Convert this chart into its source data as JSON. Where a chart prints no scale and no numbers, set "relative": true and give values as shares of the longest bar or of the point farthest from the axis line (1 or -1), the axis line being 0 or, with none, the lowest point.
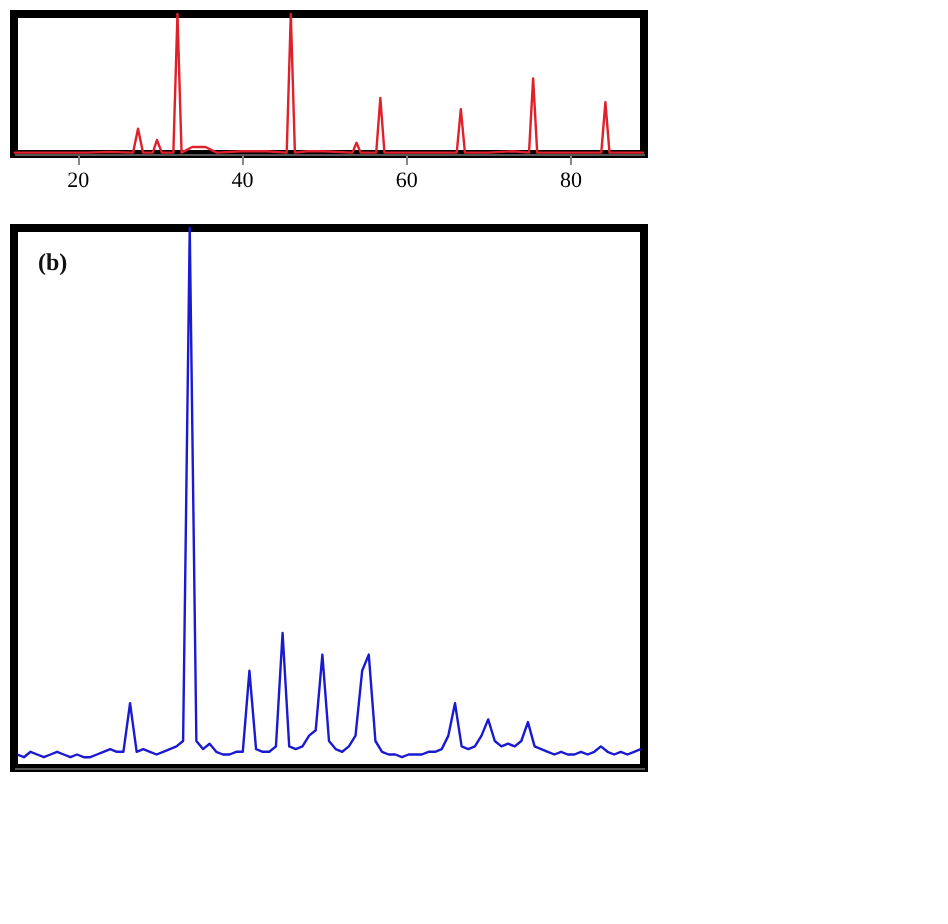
{
  "chart_data": [
    {
      "type": "line",
      "relative": true,
      "xlim": [
        12.3,
        89
      ],
      "xticks": [
        20,
        40,
        60,
        80
      ],
      "series": [
        {
          "color": "#e0202a",
          "x": [
            12.3,
            15,
            18,
            21,
            24,
            26.8,
            27.4,
            28,
            29.2,
            29.7,
            30.3,
            31.7,
            32.2,
            32.7,
            34,
            35.6,
            37,
            40,
            43,
            45.5,
            46.0,
            46.5,
            48,
            50,
            53.5,
            54,
            54.5,
            56.4,
            56.9,
            57.4,
            60,
            63,
            66.2,
            66.7,
            67.2,
            70,
            73,
            75,
            75.5,
            76,
            80,
            83.8,
            84.3,
            84.8,
            89
          ],
          "values": [
            0.01,
            0.01,
            0.01,
            0.01,
            0.015,
            0.01,
            0.18,
            0.01,
            0.01,
            0.1,
            0.01,
            0.01,
            1,
            0.01,
            0.05,
            0.05,
            0.01,
            0.02,
            0.02,
            0.01,
            1,
            0.01,
            0.02,
            0.02,
            0.01,
            0.08,
            0.01,
            0.01,
            0.4,
            0.01,
            0.01,
            0.01,
            0.01,
            0.32,
            0.01,
            0.01,
            0.02,
            0.01,
            0.54,
            0.01,
            0.01,
            0.01,
            0.37,
            0.01,
            0.01
          ]
        }
      ]
    },
    {
      "type": "line",
      "relative": true,
      "annotations": [
        "(b)"
      ],
      "categories": [
        null,
        null,
        null,
        null,
        null,
        null,
        null,
        null,
        null,
        null,
        null,
        null,
        null,
        null,
        null,
        null,
        null,
        null,
        null,
        null,
        null,
        null,
        null,
        null,
        null,
        null,
        null,
        null,
        null,
        null,
        null,
        null,
        null,
        null,
        null,
        null,
        null,
        null,
        null,
        null,
        null,
        null,
        null,
        null,
        null,
        null,
        null,
        null,
        null,
        null,
        null,
        null,
        null,
        null,
        null,
        null,
        null,
        null,
        null,
        null,
        null,
        null,
        null,
        null,
        null,
        null,
        null,
        null,
        null,
        null,
        null,
        null,
        null,
        null,
        null,
        null,
        null,
        null,
        null,
        null,
        null,
        null,
        null,
        null,
        null,
        null,
        null,
        null,
        null,
        null,
        null,
        null,
        null,
        null,
        null
      ],
      "series": [
        {
          "color": "#1a1ad0",
          "values": [
            0.025,
            0.02,
            0.03,
            0.025,
            0.02,
            0.025,
            0.03,
            0.025,
            0.02,
            0.025,
            0.02,
            0.02,
            0.025,
            0.03,
            0.035,
            0.03,
            0.03,
            0.12,
            0.03,
            0.035,
            0.03,
            0.025,
            0.03,
            0.035,
            0.04,
            0.05,
            1,
            0.05,
            0.035,
            0.045,
            0.03,
            0.025,
            0.025,
            0.03,
            0.03,
            0.18,
            0.035,
            0.03,
            0.03,
            0.04,
            0.25,
            0.04,
            0.035,
            0.04,
            0.06,
            0.07,
            0.21,
            0.05,
            0.035,
            0.03,
            0.04,
            0.06,
            0.18,
            0.21,
            0.05,
            0.03,
            0.025,
            0.025,
            0.02,
            0.025,
            0.025,
            0.025,
            0.03,
            0.03,
            0.035,
            0.06,
            0.12,
            0.04,
            0.035,
            0.04,
            0.06,
            0.09,
            0.05,
            0.04,
            0.045,
            0.04,
            0.05,
            0.085,
            0.04,
            0.035,
            0.03,
            0.025,
            0.03,
            0.025,
            0.025,
            0.03,
            0.025,
            0.03,
            0.04,
            0.03,
            0.025,
            0.03,
            0.025,
            0.03,
            0.035
          ]
        }
      ]
    }
  ]
}
